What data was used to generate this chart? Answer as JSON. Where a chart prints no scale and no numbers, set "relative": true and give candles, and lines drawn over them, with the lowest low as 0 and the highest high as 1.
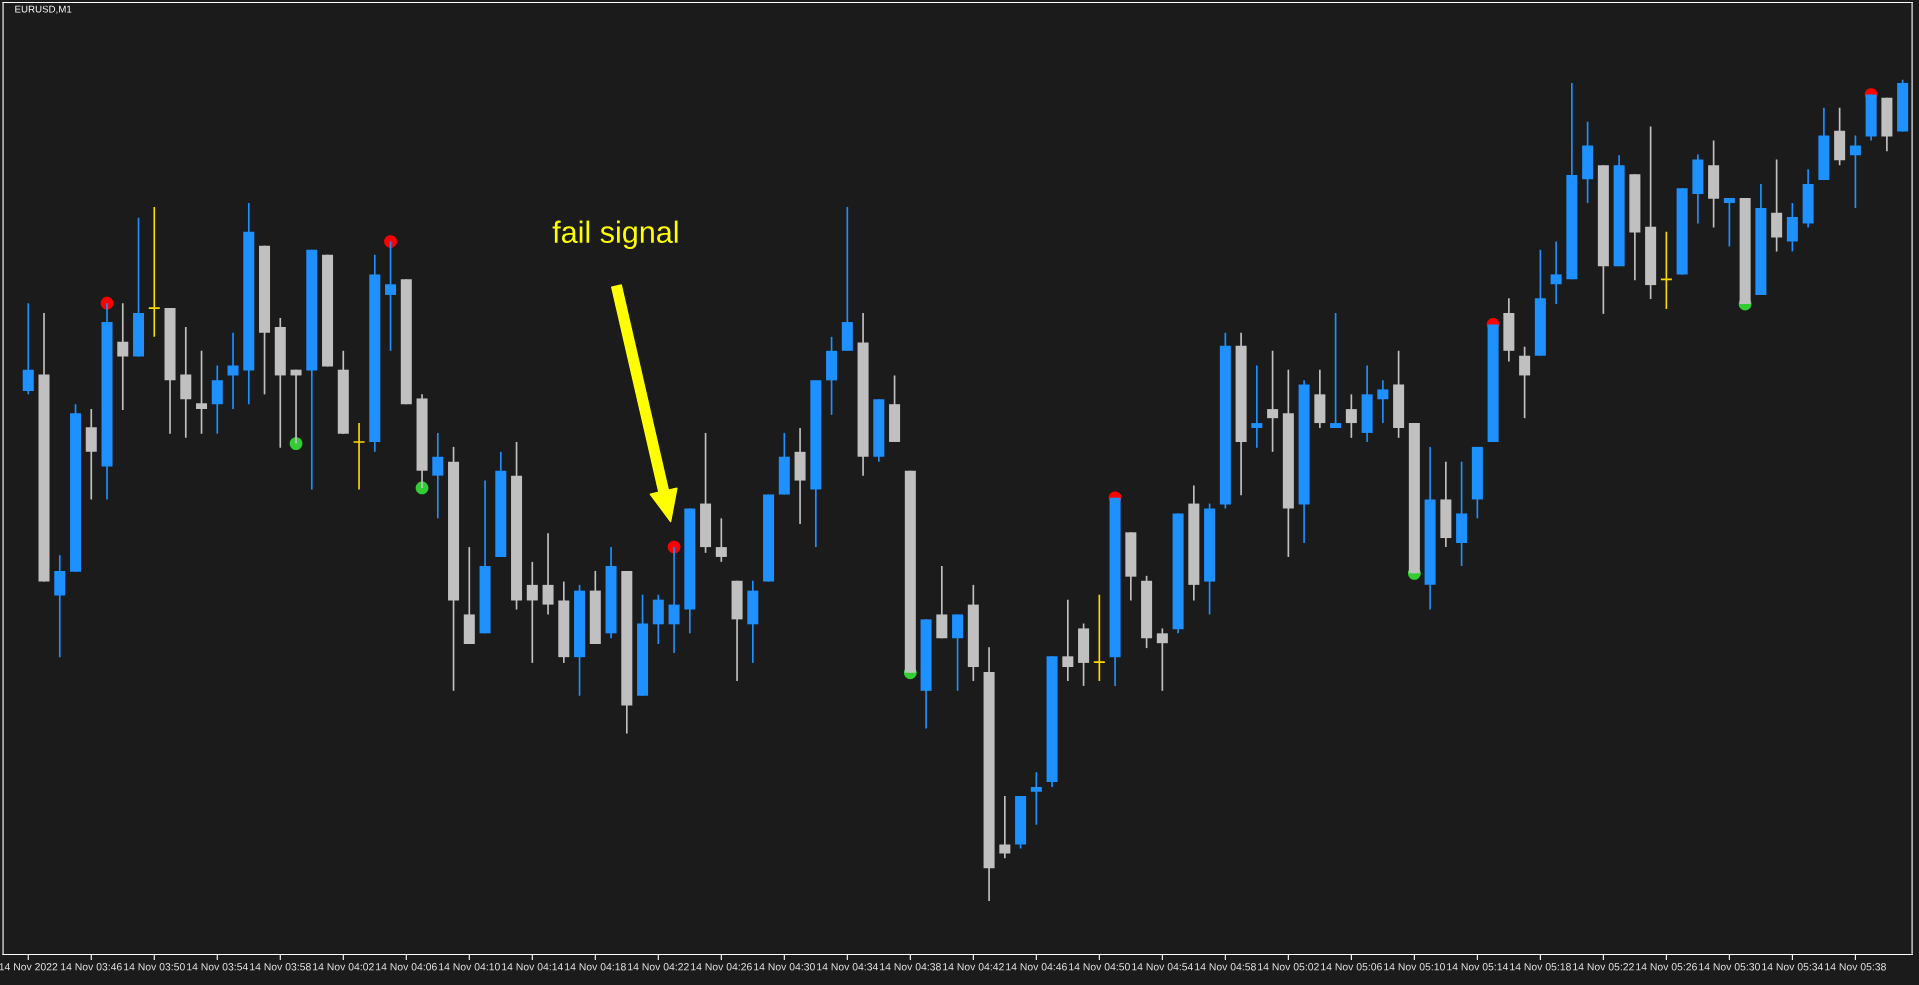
{
  "chart_data": {
    "type": "candlestick",
    "title": "EURUSD,M1",
    "relative": true,
    "marker": "circle",
    "annotations": [
      "fail signal"
    ],
    "categories": [
      "14 Nov 2022",
      null,
      null,
      null,
      "14 Nov 03:46",
      null,
      null,
      null,
      "14 Nov 03:50",
      null,
      null,
      null,
      "14 Nov 03:54",
      null,
      null,
      null,
      "14 Nov 03:58",
      null,
      null,
      null,
      "14 Nov 04:02",
      null,
      null,
      null,
      "14 Nov 04:06",
      null,
      null,
      null,
      "14 Nov 04:10",
      null,
      null,
      null,
      "14 Nov 04:14",
      null,
      null,
      null,
      "14 Nov 04:18",
      null,
      null,
      null,
      "14 Nov 04:22",
      null,
      null,
      null,
      "14 Nov 04:26",
      null,
      null,
      null,
      "14 Nov 04:30",
      null,
      null,
      null,
      "14 Nov 04:34",
      null,
      null,
      null,
      "14 Nov 04:38",
      null,
      null,
      null,
      "14 Nov 04:42",
      null,
      null,
      null,
      "14 Nov 04:46",
      null,
      null,
      null,
      "14 Nov 04:50",
      null,
      null,
      null,
      "14 Nov 04:54",
      null,
      null,
      null,
      "14 Nov 04:58",
      null,
      null,
      null,
      "14 Nov 05:02",
      null,
      null,
      null,
      "14 Nov 05:06",
      null,
      null,
      null,
      "14 Nov 05:10",
      null,
      null,
      null,
      "14 Nov 05:14",
      null,
      null,
      null,
      "14 Nov 05:18",
      null,
      null,
      null,
      "14 Nov 05:22",
      null,
      null,
      null,
      "14 Nov 05:26",
      null,
      null,
      null,
      "14 Nov 05:30",
      null,
      null,
      null,
      "14 Nov 05:34",
      null,
      null,
      null,
      "14 Nov 05:38",
      null,
      null,
      null
    ],
    "ohlc": [
      [
        0.621,
        0.728,
        0.617,
        0.647
      ],
      [
        0.641,
        0.716,
        0.389,
        0.389
      ],
      [
        0.372,
        0.421,
        0.297,
        0.402
      ],
      [
        0.401,
        0.605,
        0.401,
        0.594
      ],
      [
        0.577,
        0.599,
        0.489,
        0.547
      ],
      [
        0.529,
        0.728,
        0.489,
        0.705
      ],
      [
        0.681,
        0.728,
        0.598,
        0.663
      ],
      [
        0.663,
        0.832,
        0.663,
        0.716
      ],
      [
        0.722,
        0.845,
        0.687,
        0.722
      ],
      [
        0.722,
        0.722,
        0.569,
        0.634
      ],
      [
        0.641,
        0.699,
        0.564,
        0.611
      ],
      [
        0.606,
        0.67,
        0.569,
        0.599
      ],
      [
        0.605,
        0.652,
        0.569,
        0.634
      ],
      [
        0.64,
        0.692,
        0.599,
        0.652
      ],
      [
        0.646,
        0.85,
        0.605,
        0.815
      ],
      [
        0.798,
        0.798,
        0.617,
        0.692
      ],
      [
        0.699,
        0.71,
        0.552,
        0.64
      ],
      [
        0.647,
        0.647,
        0.557,
        0.64
      ],
      [
        0.646,
        0.793,
        0.501,
        0.793
      ],
      [
        0.787,
        0.787,
        0.651,
        0.651
      ],
      [
        0.647,
        0.67,
        0.569,
        0.569
      ],
      [
        0.559,
        0.582,
        0.501,
        0.559
      ],
      [
        0.559,
        0.787,
        0.547,
        0.763
      ],
      [
        0.738,
        0.803,
        0.67,
        0.751
      ],
      [
        0.757,
        0.757,
        0.605,
        0.605
      ],
      [
        0.612,
        0.617,
        0.503,
        0.524
      ],
      [
        0.518,
        0.57,
        0.466,
        0.541
      ],
      [
        0.535,
        0.553,
        0.256,
        0.366
      ],
      [
        0.349,
        0.431,
        0.313,
        0.313
      ],
      [
        0.326,
        0.512,
        0.326,
        0.408
      ],
      [
        0.419,
        0.547,
        0.419,
        0.524
      ],
      [
        0.518,
        0.559,
        0.355,
        0.366
      ],
      [
        0.385,
        0.413,
        0.29,
        0.366
      ],
      [
        0.385,
        0.448,
        0.349,
        0.361
      ],
      [
        0.366,
        0.389,
        0.29,
        0.297
      ],
      [
        0.297,
        0.385,
        0.25,
        0.378
      ],
      [
        0.378,
        0.402,
        0.313,
        0.313
      ],
      [
        0.326,
        0.431,
        0.32,
        0.408
      ],
      [
        0.402,
        0.402,
        0.204,
        0.238
      ],
      [
        0.25,
        0.373,
        0.25,
        0.338
      ],
      [
        0.337,
        0.373,
        0.313,
        0.367
      ],
      [
        0.337,
        0.431,
        0.302,
        0.361
      ],
      [
        0.355,
        0.478,
        0.326,
        0.478
      ],
      [
        0.484,
        0.57,
        0.424,
        0.431
      ],
      [
        0.431,
        0.466,
        0.413,
        0.419
      ],
      [
        0.39,
        0.39,
        0.268,
        0.343
      ],
      [
        0.337,
        0.39,
        0.29,
        0.378
      ],
      [
        0.389,
        0.495,
        0.389,
        0.495
      ],
      [
        0.495,
        0.57,
        0.495,
        0.541
      ],
      [
        0.547,
        0.576,
        0.459,
        0.512
      ],
      [
        0.501,
        0.634,
        0.431,
        0.634
      ],
      [
        0.634,
        0.687,
        0.592,
        0.67
      ],
      [
        0.67,
        0.845,
        0.67,
        0.705
      ],
      [
        0.68,
        0.716,
        0.518,
        0.541
      ],
      [
        0.541,
        0.611,
        0.535,
        0.611
      ],
      [
        0.605,
        0.64,
        0.559,
        0.559
      ],
      [
        0.524,
        0.524,
        0.278,
        0.278
      ],
      [
        0.256,
        0.343,
        0.21,
        0.343
      ],
      [
        0.349,
        0.408,
        0.32,
        0.32
      ],
      [
        0.32,
        0.349,
        0.256,
        0.349
      ],
      [
        0.361,
        0.385,
        0.268,
        0.285
      ],
      [
        0.279,
        0.309,
        0.0,
        0.04
      ],
      [
        0.069,
        0.128,
        0.052,
        0.058
      ],
      [
        0.069,
        0.128,
        0.064,
        0.128
      ],
      [
        0.133,
        0.157,
        0.093,
        0.139
      ],
      [
        0.145,
        0.298,
        0.139,
        0.298
      ],
      [
        0.298,
        0.367,
        0.268,
        0.285
      ],
      [
        0.332,
        0.338,
        0.262,
        0.29
      ],
      [
        0.291,
        0.373,
        0.268,
        0.291
      ],
      [
        0.297,
        0.491,
        0.262,
        0.491
      ],
      [
        0.449,
        0.449,
        0.366,
        0.395
      ],
      [
        0.39,
        0.396,
        0.308,
        0.32
      ],
      [
        0.326,
        0.332,
        0.256,
        0.314
      ],
      [
        0.331,
        0.472,
        0.326,
        0.472
      ],
      [
        0.484,
        0.506,
        0.366,
        0.385
      ],
      [
        0.389,
        0.484,
        0.349,
        0.478
      ],
      [
        0.483,
        0.692,
        0.478,
        0.676
      ],
      [
        0.676,
        0.692,
        0.494,
        0.559
      ],
      [
        0.576,
        0.652,
        0.552,
        0.582
      ],
      [
        0.599,
        0.67,
        0.547,
        0.588
      ],
      [
        0.594,
        0.647,
        0.419,
        0.478
      ],
      [
        0.483,
        0.634,
        0.436,
        0.629
      ],
      [
        0.617,
        0.647,
        0.576,
        0.582
      ],
      [
        0.576,
        0.716,
        0.576,
        0.582
      ],
      [
        0.599,
        0.617,
        0.564,
        0.582
      ],
      [
        0.57,
        0.652,
        0.559,
        0.617
      ],
      [
        0.611,
        0.634,
        0.582,
        0.623
      ],
      [
        0.629,
        0.67,
        0.564,
        0.576
      ],
      [
        0.582,
        0.582,
        0.399,
        0.399
      ],
      [
        0.385,
        0.553,
        0.355,
        0.489
      ],
      [
        0.489,
        0.535,
        0.431,
        0.442
      ],
      [
        0.436,
        0.535,
        0.408,
        0.472
      ],
      [
        0.489,
        0.553,
        0.466,
        0.553
      ],
      [
        0.559,
        0.702,
        0.559,
        0.702
      ],
      [
        0.716,
        0.734,
        0.657,
        0.67
      ],
      [
        0.664,
        0.675,
        0.588,
        0.64
      ],
      [
        0.664,
        0.793,
        0.664,
        0.734
      ],
      [
        0.751,
        0.803,
        0.727,
        0.763
      ],
      [
        0.757,
        0.996,
        0.757,
        0.884
      ],
      [
        0.879,
        0.949,
        0.85,
        0.92
      ],
      [
        0.896,
        0.896,
        0.715,
        0.773
      ],
      [
        0.773,
        0.908,
        0.773,
        0.896
      ],
      [
        0.885,
        0.885,
        0.756,
        0.814
      ],
      [
        0.821,
        0.943,
        0.733,
        0.75
      ],
      [
        0.757,
        0.815,
        0.721,
        0.757
      ],
      [
        0.763,
        0.868,
        0.763,
        0.868
      ],
      [
        0.861,
        0.909,
        0.825,
        0.903
      ],
      [
        0.896,
        0.926,
        0.82,
        0.855
      ],
      [
        0.85,
        0.856,
        0.797,
        0.856
      ],
      [
        0.856,
        0.856,
        0.727,
        0.727
      ],
      [
        0.738,
        0.873,
        0.738,
        0.844
      ],
      [
        0.838,
        0.903,
        0.791,
        0.808
      ],
      [
        0.803,
        0.85,
        0.791,
        0.833
      ],
      [
        0.825,
        0.891,
        0.82,
        0.873
      ],
      [
        0.878,
        0.966,
        0.878,
        0.932
      ],
      [
        0.938,
        0.966,
        0.896,
        0.902
      ],
      [
        0.908,
        0.932,
        0.844,
        0.92
      ],
      [
        0.931,
        0.982,
        0.926,
        0.982
      ],
      [
        0.978,
        0.978,
        0.913,
        0.931
      ],
      [
        0.937,
        1.0,
        0.937,
        0.996
      ]
    ],
    "colors": [
      "#1e90ff",
      "#c0c0c0",
      "#1e90ff",
      "#1e90ff",
      "#c0c0c0",
      "#1e90ff",
      "#c0c0c0",
      "#1e90ff",
      "#ffd700",
      "#c0c0c0",
      "#c0c0c0",
      "#c0c0c0",
      "#1e90ff",
      "#1e90ff",
      "#1e90ff",
      "#c0c0c0",
      "#c0c0c0",
      "#c0c0c0",
      "#1e90ff",
      "#c0c0c0",
      "#c0c0c0",
      "#ffd700",
      "#1e90ff",
      "#1e90ff",
      "#c0c0c0",
      "#c0c0c0",
      "#1e90ff",
      "#c0c0c0",
      "#c0c0c0",
      "#1e90ff",
      "#1e90ff",
      "#c0c0c0",
      "#c0c0c0",
      "#c0c0c0",
      "#c0c0c0",
      "#1e90ff",
      "#c0c0c0",
      "#1e90ff",
      "#c0c0c0",
      "#1e90ff",
      "#1e90ff",
      "#1e90ff",
      "#1e90ff",
      "#c0c0c0",
      "#c0c0c0",
      "#c0c0c0",
      "#1e90ff",
      "#1e90ff",
      "#1e90ff",
      "#c0c0c0",
      "#1e90ff",
      "#1e90ff",
      "#1e90ff",
      "#c0c0c0",
      "#1e90ff",
      "#c0c0c0",
      "#c0c0c0",
      "#1e90ff",
      "#c0c0c0",
      "#1e90ff",
      "#c0c0c0",
      "#c0c0c0",
      "#c0c0c0",
      "#1e90ff",
      "#1e90ff",
      "#1e90ff",
      "#c0c0c0",
      "#c0c0c0",
      "#ffd700",
      "#1e90ff",
      "#c0c0c0",
      "#c0c0c0",
      "#c0c0c0",
      "#1e90ff",
      "#c0c0c0",
      "#1e90ff",
      "#1e90ff",
      "#c0c0c0",
      "#1e90ff",
      "#c0c0c0",
      "#c0c0c0",
      "#1e90ff",
      "#c0c0c0",
      "#1e90ff",
      "#c0c0c0",
      "#1e90ff",
      "#1e90ff",
      "#c0c0c0",
      "#c0c0c0",
      "#1e90ff",
      "#c0c0c0",
      "#1e90ff",
      "#1e90ff",
      "#1e90ff",
      "#c0c0c0",
      "#c0c0c0",
      "#1e90ff",
      "#1e90ff",
      "#1e90ff",
      "#1e90ff",
      "#c0c0c0",
      "#1e90ff",
      "#c0c0c0",
      "#c0c0c0",
      "#ffd700",
      "#1e90ff",
      "#1e90ff",
      "#c0c0c0",
      "#1e90ff",
      "#c0c0c0",
      "#1e90ff",
      "#c0c0c0",
      "#1e90ff",
      "#1e90ff",
      "#1e90ff",
      "#c0c0c0",
      "#1e90ff",
      "#1e90ff",
      "#c0c0c0",
      "#1e90ff"
    ],
    "series": [
      {
        "type": "scatter",
        "color": "#ff0000",
        "values": [
          null,
          null,
          null,
          null,
          null,
          0.728,
          null,
          null,
          null,
          null,
          null,
          null,
          null,
          null,
          null,
          null,
          null,
          null,
          null,
          null,
          null,
          null,
          null,
          0.803,
          null,
          null,
          null,
          null,
          null,
          null,
          null,
          null,
          null,
          null,
          null,
          null,
          null,
          null,
          null,
          null,
          null,
          0.431,
          null,
          null,
          null,
          null,
          null,
          null,
          null,
          null,
          null,
          null,
          null,
          null,
          null,
          null,
          null,
          null,
          null,
          null,
          null,
          null,
          null,
          null,
          null,
          null,
          null,
          null,
          null,
          0.491,
          null,
          null,
          null,
          null,
          null,
          null,
          null,
          null,
          null,
          null,
          null,
          null,
          null,
          null,
          null,
          null,
          null,
          null,
          null,
          null,
          null,
          null,
          null,
          0.702,
          null,
          null,
          null,
          null,
          null,
          null,
          null,
          null,
          null,
          null,
          null,
          null,
          null,
          null,
          null,
          null,
          null,
          null,
          null,
          null,
          null,
          null,
          null,
          0.982,
          null,
          null
        ]
      },
      {
        "type": "scatter",
        "color": "#32cd32",
        "values": [
          null,
          null,
          null,
          null,
          null,
          null,
          null,
          null,
          null,
          null,
          null,
          null,
          null,
          null,
          null,
          null,
          null,
          0.557,
          null,
          null,
          null,
          null,
          null,
          null,
          null,
          0.503,
          null,
          null,
          null,
          null,
          null,
          null,
          null,
          null,
          null,
          null,
          null,
          null,
          null,
          null,
          null,
          null,
          null,
          null,
          null,
          null,
          null,
          null,
          null,
          null,
          null,
          null,
          null,
          null,
          null,
          null,
          0.278,
          null,
          null,
          null,
          null,
          null,
          null,
          null,
          null,
          null,
          null,
          null,
          null,
          null,
          null,
          null,
          null,
          null,
          null,
          null,
          null,
          null,
          null,
          null,
          null,
          null,
          null,
          null,
          null,
          null,
          null,
          null,
          0.399,
          null,
          null,
          null,
          null,
          null,
          null,
          null,
          null,
          null,
          null,
          null,
          null,
          null,
          null,
          null,
          null,
          null,
          null,
          null,
          null,
          0.727,
          null,
          null,
          null,
          null,
          null,
          null,
          null,
          null,
          null,
          null
        ]
      }
    ]
  }
}
